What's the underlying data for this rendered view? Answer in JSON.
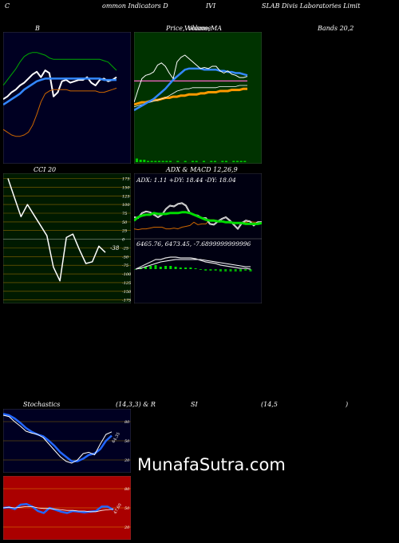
{
  "header": {
    "seg1": "C",
    "seg2": "ommon  Indicators D",
    "seg3": "IVI",
    "seg4": "SLAB Divis Laboratories Limit"
  },
  "labels": {
    "bbands_left": "B",
    "bbands_right": "Bands 20,2",
    "price_ma_left": "Price,",
    "price_ma_mid": "Volume,",
    "price_ma_overlap": "Volume",
    "price_ma_right": "MA",
    "cci_title": "CCI 20",
    "cci_last": "-38",
    "adx_macd_title": "ADX  & MACD 12,26,9",
    "adx_values": "ADX: 1.11  +DY: 18.44  -DY: 18.04",
    "macd_values": "6465.76,   6473.45,   -7.6899999999996",
    "stoch_left": "Stochastics",
    "stoch_mid": "(14,3,3) & R",
    "stoch_rsi": "SI",
    "stoch_rsi_params": "(14,5",
    "stoch_rsi_close": ")",
    "stoch_last": "64.35",
    "rsi_last": "47.60",
    "watermark": "MunafaSutra.com"
  },
  "colors": {
    "bbands_bg": "#000022",
    "price_bg": "#003300",
    "cci_bg": "#001a00",
    "adx_bg": "#000011",
    "stoch_bg": "#000022",
    "rsi_bg": "#aa0000"
  },
  "chart_data": [
    {
      "type": "line",
      "name": "bollinger_bands",
      "x_count": 28,
      "series": [
        {
          "role": "price",
          "color": "#ffffff",
          "values": [
            94,
            96,
            99,
            101,
            104,
            106,
            109,
            112,
            114,
            110,
            115,
            113,
            96,
            99,
            107,
            108,
            106,
            107,
            108,
            108,
            110,
            106,
            104,
            108,
            109,
            107,
            108,
            110
          ]
        },
        {
          "role": "upper",
          "color": "#00aa00",
          "values": [
            104,
            108,
            112,
            116,
            121,
            125,
            127,
            128,
            128,
            127,
            126,
            124,
            123,
            123,
            123,
            123,
            123,
            123,
            123,
            123,
            123,
            123,
            123,
            123,
            122,
            121,
            118,
            115
          ]
        },
        {
          "role": "middle",
          "color": "#3388ff",
          "values": [
            90,
            92,
            94,
            96,
            98,
            101,
            103,
            105,
            107,
            108,
            109,
            109,
            109,
            109,
            109,
            109,
            109,
            109,
            109,
            109,
            109,
            109,
            109,
            109,
            108,
            108,
            108,
            108
          ]
        },
        {
          "role": "lower",
          "color": "#cc6600",
          "values": [
            72,
            70,
            68,
            67,
            67,
            68,
            70,
            75,
            83,
            92,
            98,
            100,
            101,
            101,
            101,
            101,
            100,
            100,
            100,
            100,
            100,
            100,
            100,
            99,
            99,
            100,
            101,
            102
          ]
        }
      ],
      "ylim": [
        50,
        140
      ]
    },
    {
      "type": "line",
      "name": "price_volume_ma",
      "x_count": 30,
      "series": [
        {
          "role": "price",
          "color": "#ffffff",
          "values": [
            101,
            112,
            122,
            125,
            126,
            128,
            134,
            136,
            133,
            127,
            122,
            137,
            141,
            143,
            140,
            137,
            134,
            131,
            132,
            131,
            133,
            133,
            129,
            127,
            129,
            126,
            125,
            123,
            123,
            124
          ]
        },
        {
          "role": "ma_short",
          "color": "#3388ff",
          "values": [
            94,
            96,
            98,
            100,
            102,
            104,
            107,
            110,
            113,
            117,
            121,
            124,
            127,
            130,
            131,
            131,
            131,
            131,
            130,
            130,
            130,
            130,
            129,
            129,
            128,
            128,
            127,
            127,
            126,
            125
          ]
        },
        {
          "role": "ma_mid",
          "color": "#ffffff",
          "values": [
            97,
            98,
            99,
            100,
            101,
            102,
            103,
            104,
            105,
            107,
            109,
            111,
            112,
            113,
            113,
            114,
            114,
            114,
            114,
            114,
            114,
            114,
            115,
            115,
            115,
            115,
            115,
            116,
            116,
            116
          ]
        },
        {
          "role": "ma_long",
          "color": "#ff9900",
          "values": [
            99,
            100,
            101,
            101,
            102,
            103,
            103,
            104,
            105,
            105,
            106,
            106,
            107,
            107,
            108,
            108,
            108,
            109,
            109,
            110,
            110,
            110,
            111,
            111,
            111,
            112,
            112,
            112,
            113,
            113
          ]
        },
        {
          "role": "ma_flat",
          "color": "#ff66cc",
          "values": [
            120,
            120,
            120,
            120,
            120,
            120,
            120,
            120,
            120,
            120,
            120,
            120,
            120,
            120,
            120,
            120,
            120,
            120,
            120,
            120,
            120,
            120,
            120,
            120,
            120,
            120,
            120,
            120,
            120,
            120
          ]
        }
      ],
      "volume": [
        3,
        2,
        2,
        1,
        1,
        1,
        1,
        1,
        1,
        1,
        0,
        1,
        0,
        1,
        0,
        1,
        1,
        0,
        1,
        0,
        1,
        1,
        0,
        1,
        1,
        0,
        1,
        1,
        1,
        1
      ],
      "ylim": [
        50,
        160
      ]
    },
    {
      "type": "line",
      "name": "cci",
      "ticks": [
        175,
        150,
        125,
        100,
        75,
        50,
        25,
        0,
        -25,
        -50,
        -75,
        -100,
        -125,
        -150,
        -175
      ],
      "values": [
        175,
        120,
        65,
        100,
        70,
        40,
        10,
        -80,
        -120,
        5,
        15,
        -30,
        -70,
        -65,
        -20,
        -38
      ],
      "ylim": [
        -185,
        190
      ]
    },
    {
      "type": "line",
      "name": "adx",
      "adx": [
        20,
        24,
        26,
        27,
        27,
        29,
        28,
        28,
        28,
        29,
        29,
        29,
        30,
        30,
        29,
        27,
        25,
        23,
        21,
        20,
        20,
        19,
        19,
        18,
        18,
        17,
        17,
        17,
        16,
        16,
        16,
        16,
        17
      ],
      "plus_di": [
        24,
        23,
        29,
        31,
        30,
        27,
        24,
        27,
        34,
        38,
        37,
        40,
        41,
        38,
        29,
        27,
        26,
        23,
        23,
        16,
        15,
        19,
        22,
        24,
        20,
        15,
        10,
        17,
        20,
        19,
        14,
        18,
        18
      ],
      "minus_di": [
        10,
        9,
        10,
        10,
        11,
        12,
        12,
        12,
        10,
        10,
        11,
        10,
        12,
        13,
        14,
        18,
        15,
        16,
        16,
        21,
        21,
        20,
        19,
        18,
        17,
        18,
        17,
        18,
        18,
        19,
        18,
        18,
        18
      ],
      "ylim": [
        0,
        50
      ]
    },
    {
      "type": "line",
      "name": "macd",
      "macd": [
        0,
        3,
        6,
        9,
        12,
        12,
        14,
        15,
        15,
        14,
        14,
        14,
        13,
        11,
        9,
        8,
        7,
        5,
        4,
        3,
        2,
        1,
        1,
        0
      ],
      "signal": [
        0,
        1,
        3,
        5,
        7,
        9,
        10,
        11,
        12,
        12,
        12,
        12,
        12,
        12,
        11,
        10,
        9,
        8,
        7,
        6,
        5,
        4,
        3,
        3
      ],
      "histogram": [
        0,
        2,
        3,
        4,
        5,
        3,
        4,
        4,
        3,
        2,
        2,
        2,
        1,
        -1,
        -2,
        -2,
        -2,
        -3,
        -3,
        -3,
        -3,
        -3,
        -2,
        -3
      ],
      "ylim": [
        -20,
        20
      ]
    },
    {
      "type": "line",
      "name": "stochastics",
      "ticks": [
        80,
        50,
        20
      ],
      "k": [
        90,
        88,
        80,
        73,
        65,
        62,
        60,
        55,
        45,
        35,
        25,
        18,
        15,
        20,
        30,
        32,
        28,
        45,
        60,
        64
      ],
      "d": [
        92,
        90,
        85,
        78,
        70,
        64,
        60,
        57,
        50,
        42,
        32,
        25,
        18,
        18,
        22,
        28,
        30,
        37,
        50,
        58
      ],
      "ylim": [
        0,
        100
      ]
    },
    {
      "type": "line",
      "name": "rsi",
      "ticks": [
        80,
        50,
        20
      ],
      "rsi": [
        50,
        51,
        48,
        55,
        56,
        52,
        45,
        42,
        50,
        47,
        44,
        42,
        45,
        44,
        43,
        44,
        45,
        52,
        52,
        47
      ],
      "ma": [
        50,
        51,
        50,
        51,
        52,
        52,
        50,
        49,
        49,
        48,
        47,
        46,
        46,
        45,
        45,
        44,
        44,
        46,
        47,
        48
      ],
      "ylim": [
        0,
        100
      ]
    }
  ]
}
